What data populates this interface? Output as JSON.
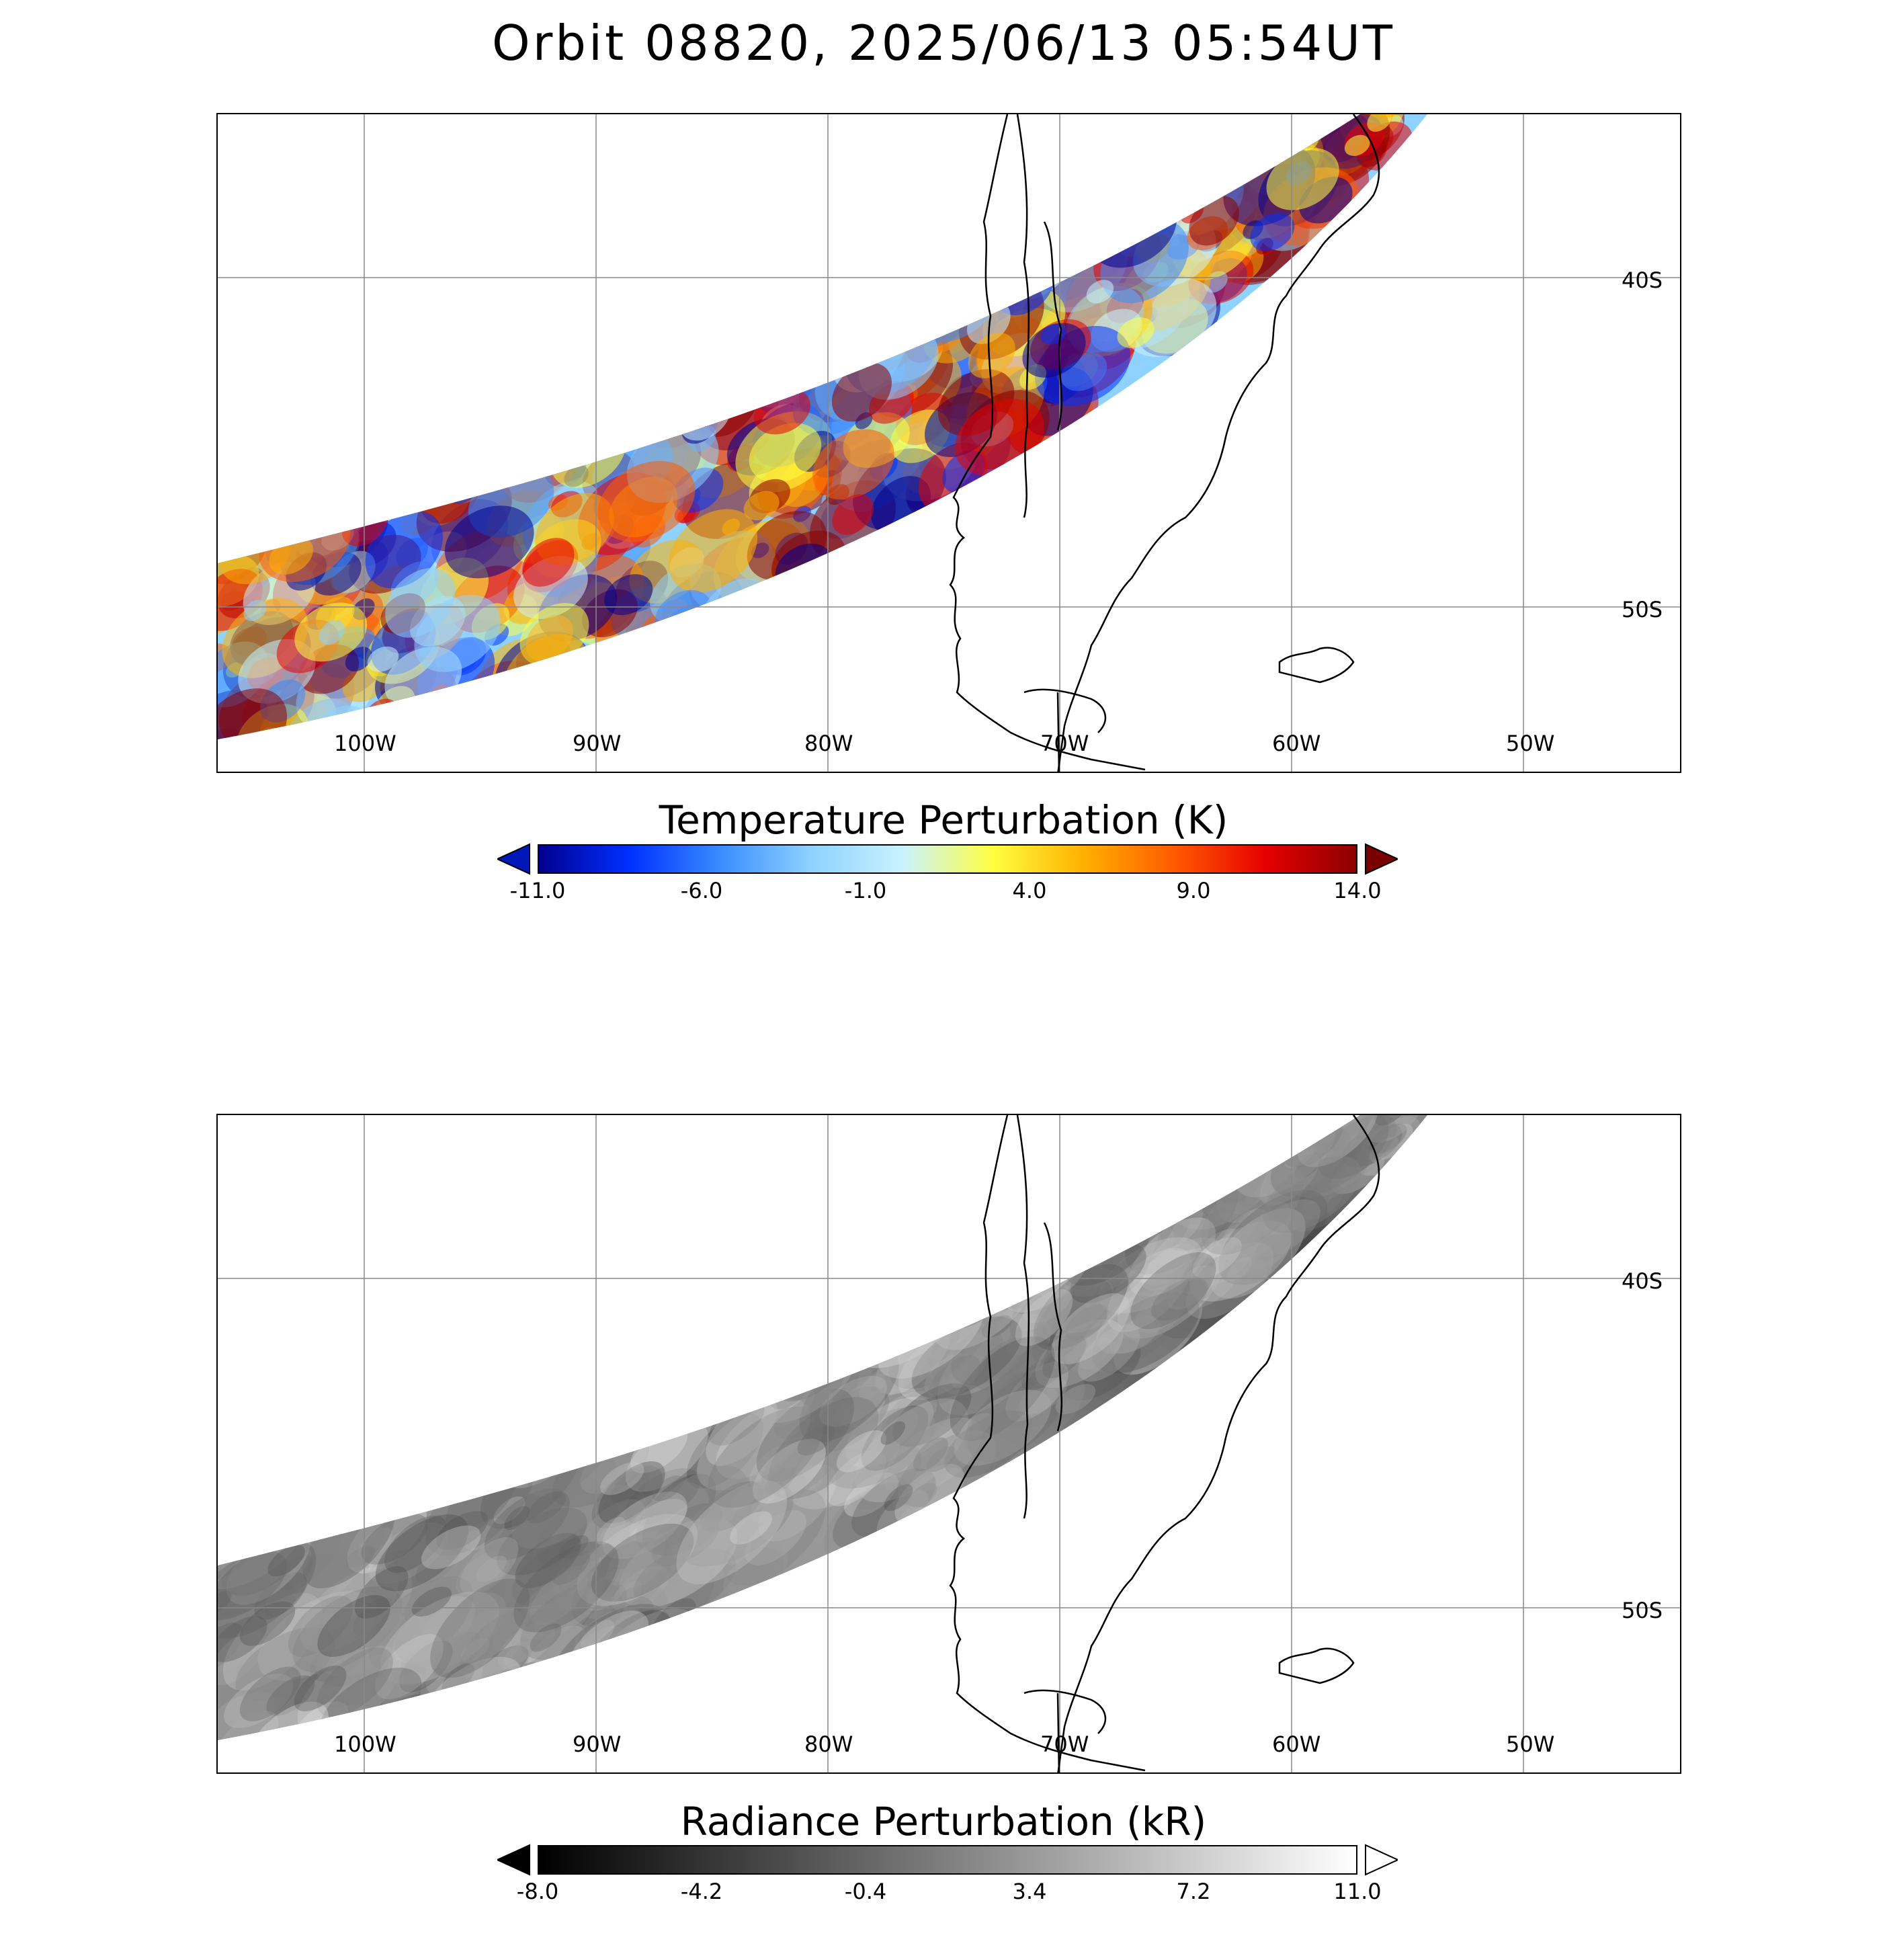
{
  "title": "Orbit 08820, 2025/06/13 05:54UT",
  "lon_labels": [
    "100W",
    "90W",
    "80W",
    "70W",
    "60W",
    "50W"
  ],
  "lat_labels": [
    "40S",
    "50S"
  ],
  "panels": [
    {
      "name": "temperature",
      "colorbar_title": "Temperature Perturbation (K)",
      "colorbar_ticks": [
        "-11.0",
        "-6.0",
        "-1.0",
        "4.0",
        "9.0",
        "14.0"
      ],
      "colorbar_range": [
        -11.0,
        14.0
      ],
      "colormap": [
        "#00008f",
        "#0030ff",
        "#3a8cff",
        "#8fd2ff",
        "#c9f2ff",
        "#ffff40",
        "#ffb000",
        "#ff5a00",
        "#e60000",
        "#8b0000"
      ]
    },
    {
      "name": "radiance",
      "colorbar_title": "Radiance Perturbation (kR)",
      "colorbar_ticks": [
        "-8.0",
        "-4.2",
        "-0.4",
        "3.4",
        "7.2",
        "11.0"
      ],
      "colorbar_range": [
        -8.0,
        11.0
      ],
      "colormap": [
        "#000000",
        "#ffffff"
      ]
    }
  ]
}
